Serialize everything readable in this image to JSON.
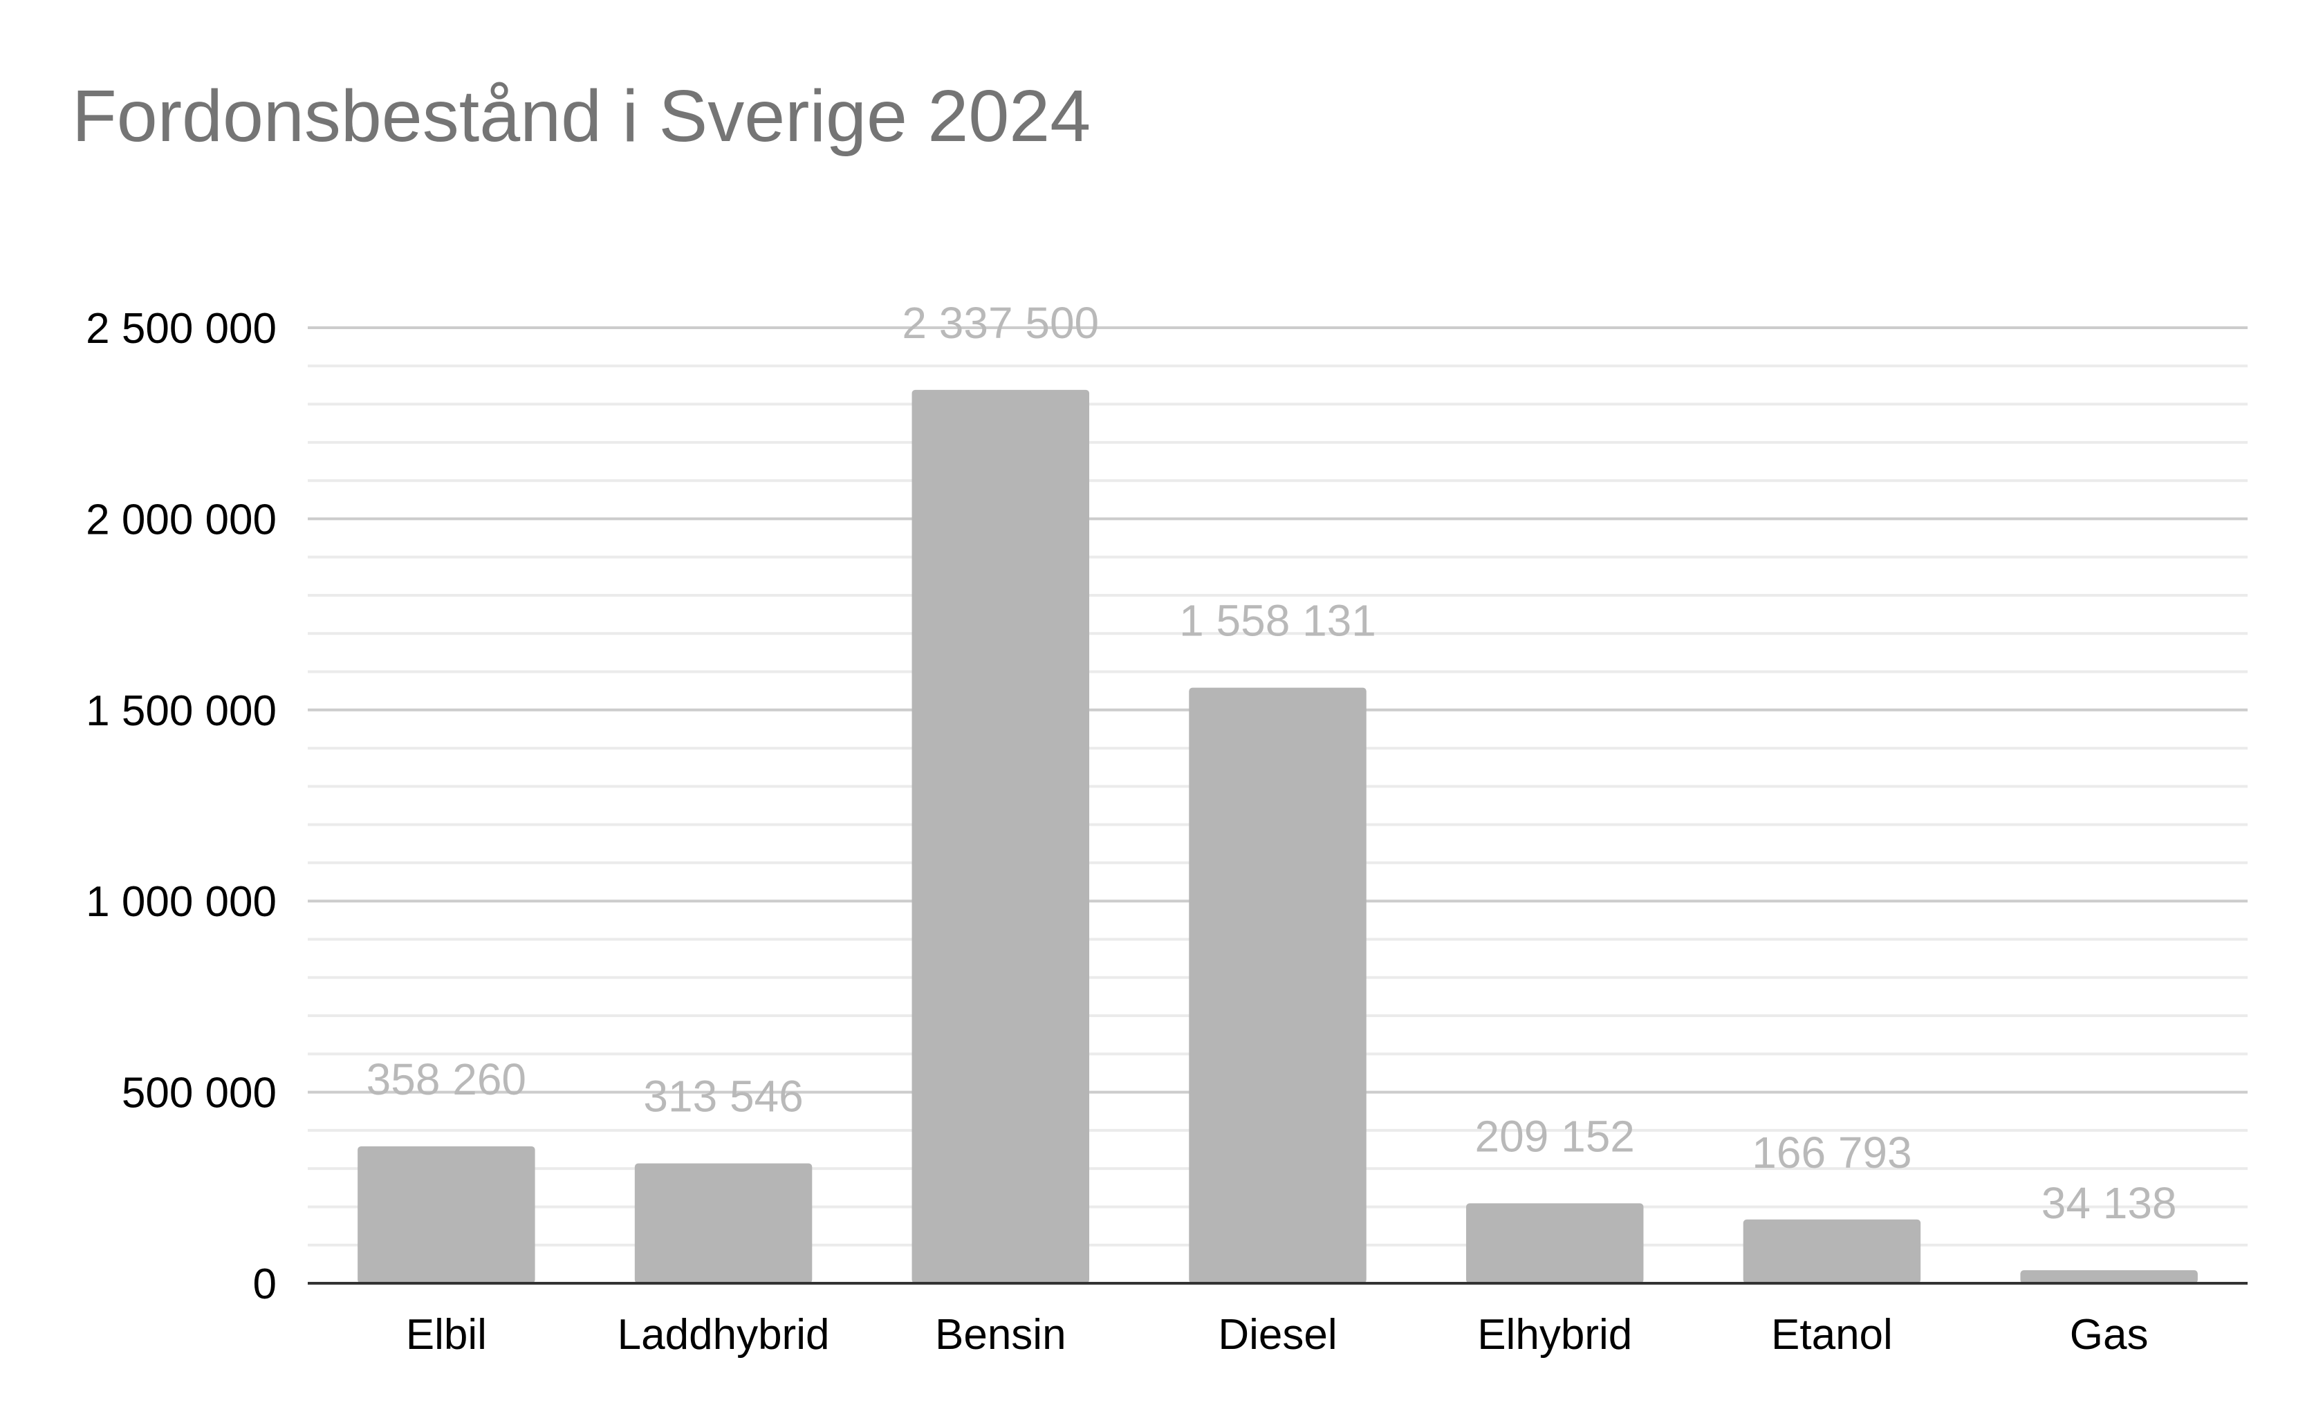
{
  "chart_data": {
    "type": "bar",
    "title": "Fordonsbestånd i Sverige 2024",
    "xlabel": "",
    "ylabel": "",
    "categories": [
      "Elbil",
      "Laddhybrid",
      "Bensin",
      "Diesel",
      "Elhybrid",
      "Etanol",
      "Gas"
    ],
    "values": [
      358260,
      313546,
      2337500,
      1558131,
      209152,
      166793,
      34138
    ],
    "data_labels": [
      "358 260",
      "313 546",
      "2 337 500",
      "1 558 131",
      "209 152",
      "166 793",
      "34 138"
    ],
    "ylim": [
      0,
      2500000
    ],
    "y_ticks": [
      0,
      500000,
      1000000,
      1500000,
      2000000,
      2500000
    ],
    "y_tick_labels": [
      "0",
      "500 000",
      "1 000 000",
      "1 500 000",
      "2 000 000",
      "2 500 000"
    ],
    "grid": true,
    "minor_grid": true,
    "legend": "none",
    "bar_color": "#b5b5b5",
    "data_label_color": "#b9b9b9",
    "title_color": "#757575"
  }
}
